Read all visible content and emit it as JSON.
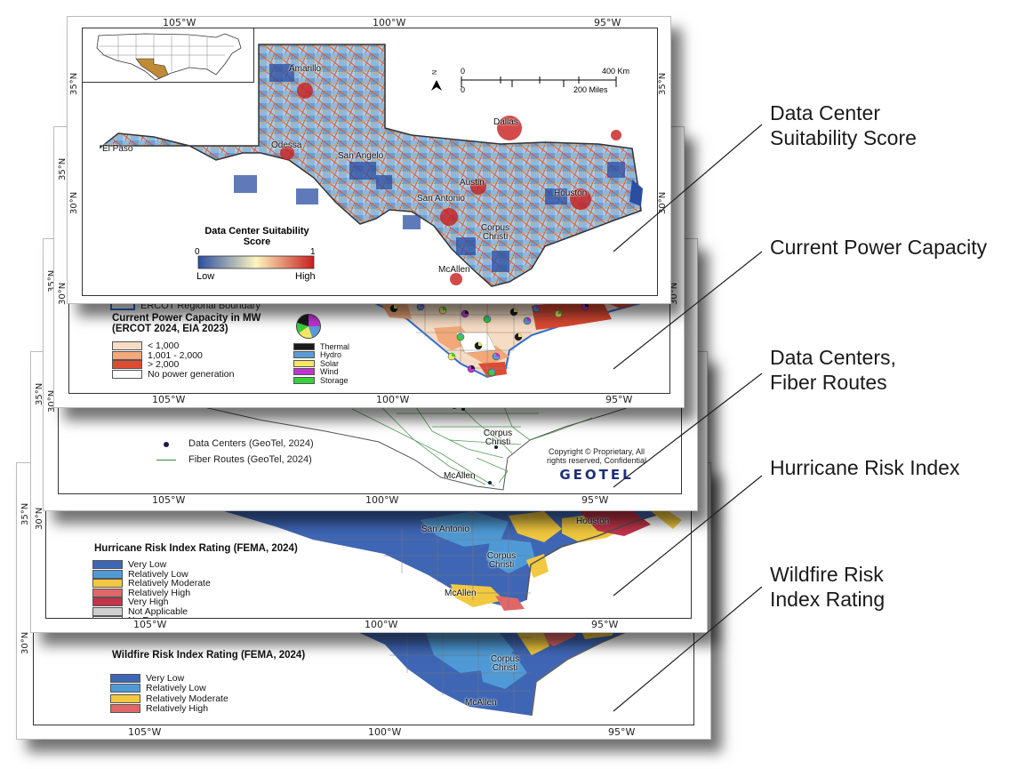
{
  "axis": {
    "lon_labels": [
      "105°W",
      "100°W",
      "95°W"
    ],
    "lat_35": "35°N",
    "lat_30": "30°N"
  },
  "layers": {
    "suitability": {
      "cities": [
        "Amarillo",
        "Dallas",
        "El Paso",
        "Odessa",
        "San Angelo",
        "Austin",
        "Houston",
        "San Antonio",
        "Corpus Christi",
        "McAllen"
      ],
      "legend_title": "Data Center Suitability Score",
      "scale_min": "0",
      "scale_max": "1",
      "low_label": "Low",
      "high_label": "High",
      "scalebar_km": "400 Km",
      "scalebar_miles": "200 Miles",
      "scalebar_zero_a": "0",
      "scalebar_zero_b": "0",
      "north": "N",
      "colors": {
        "low": "#2b4ea2",
        "mid": "#fdf5c0",
        "high": "#c81e1e"
      }
    },
    "power": {
      "boundary_label": "ERCOT Regional Boundary",
      "legend_title": "Current Power Capacity in MW (ERCOT 2024, EIA 2023)",
      "classes": [
        {
          "label": "< 1,000",
          "color": "#f6dcc4"
        },
        {
          "label": "1,001 - 2,000",
          "color": "#f2a878"
        },
        {
          "label": "> 2,000",
          "color": "#de4a32"
        },
        {
          "label": "No power generation",
          "color": "#ffffff"
        }
      ],
      "sources": [
        {
          "label": "Thermal",
          "color": "#1a1a1a"
        },
        {
          "label": "Hydro",
          "color": "#5b9bd5"
        },
        {
          "label": "Solar",
          "color": "#f5e663"
        },
        {
          "label": "Wind",
          "color": "#c033d6"
        },
        {
          "label": "Storage",
          "color": "#35d13b"
        }
      ]
    },
    "fiber": {
      "dc_label": "Data Centers (GeoTel, 2024)",
      "fiber_label": "Fiber Routes (GeoTel, 2024)",
      "copyright": "Copyright © Proprietary, All rights reserved, Confidential",
      "logo": "GEOTEL",
      "cities": [
        "Corpus Christi",
        "McAllen"
      ]
    },
    "hurricane": {
      "legend_title": "Hurricane Risk Index Rating (FEMA, 2024)",
      "classes": [
        {
          "label": "Very Low",
          "color": "#3f66b5"
        },
        {
          "label": "Relatively Low",
          "color": "#4f9ad6"
        },
        {
          "label": "Relatively Moderate",
          "color": "#f1c83f"
        },
        {
          "label": "Relatively High",
          "color": "#e06767"
        },
        {
          "label": "Very High",
          "color": "#c4344b"
        },
        {
          "label": "Not Applicable",
          "color": "#cfcfcf"
        },
        {
          "label": "No Rating",
          "color": "#ffffff"
        }
      ],
      "cities": [
        "San Antonio",
        "Houston",
        "Corpus Christi",
        "McAllen"
      ]
    },
    "wildfire": {
      "legend_title": "Wildfire Risk Index Rating (FEMA, 2024)",
      "classes": [
        {
          "label": "Very Low",
          "color": "#3f66b5"
        },
        {
          "label": "Relatively Low",
          "color": "#4f9ad6"
        },
        {
          "label": "Relatively Moderate",
          "color": "#f1c83f"
        },
        {
          "label": "Relatively High",
          "color": "#e06767"
        }
      ],
      "cities": [
        "Corpus Christi",
        "McAllen"
      ]
    }
  },
  "callouts": [
    {
      "line1": "Data Center",
      "line2": "Suitability Score"
    },
    {
      "line1": "Current Power Capacity",
      "line2": ""
    },
    {
      "line1": "Data Centers,",
      "line2": "Fiber Routes"
    },
    {
      "line1": "Hurricane Risk Index",
      "line2": ""
    },
    {
      "line1": "Wildfire Risk",
      "line2": "Index Rating"
    }
  ]
}
